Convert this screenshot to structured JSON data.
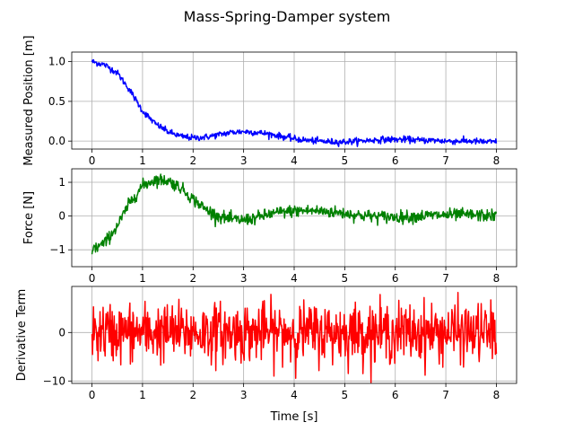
{
  "figure": {
    "title": "Mass-Spring-Damper system"
  },
  "chart_data": [
    {
      "type": "line",
      "ylabel": "Measured Position [m]",
      "xlabel": "",
      "xlim": [
        -0.4,
        8.4
      ],
      "ylim": [
        -0.1,
        1.12
      ],
      "xticks": [
        "0",
        "1",
        "2",
        "3",
        "4",
        "5",
        "6",
        "7",
        "8"
      ],
      "yticks": [
        "0.0",
        "0.5",
        "1.0"
      ],
      "grid": true,
      "series": [
        {
          "color": "#0000ff",
          "x": [
            0,
            0.25,
            0.5,
            0.75,
            1.0,
            1.25,
            1.5,
            1.75,
            2.0,
            2.25,
            2.5,
            2.75,
            3.0,
            3.25,
            3.5,
            3.75,
            4.0,
            4.25,
            4.5,
            4.75,
            5.0,
            5.25,
            5.5,
            5.75,
            6.0,
            6.25,
            6.5,
            6.75,
            7.0,
            7.25,
            7.5,
            7.75,
            8.0
          ],
          "y": [
            1.0,
            0.96,
            0.86,
            0.64,
            0.38,
            0.22,
            0.12,
            0.06,
            0.04,
            0.05,
            0.08,
            0.11,
            0.12,
            0.11,
            0.09,
            0.06,
            0.03,
            0.01,
            0.0,
            -0.01,
            -0.01,
            0.0,
            0.01,
            0.02,
            0.02,
            0.02,
            0.01,
            0.01,
            0.0,
            0.0,
            0.0,
            -0.01,
            -0.01
          ],
          "noise": 0.02
        }
      ]
    },
    {
      "type": "line",
      "ylabel": "Force [N]",
      "xlabel": "",
      "xlim": [
        -0.4,
        8.4
      ],
      "ylim": [
        -1.5,
        1.4
      ],
      "xticks": [
        "0",
        "1",
        "2",
        "3",
        "4",
        "5",
        "6",
        "7",
        "8"
      ],
      "yticks": [
        "−1",
        "0",
        "1"
      ],
      "grid": true,
      "series": [
        {
          "color": "#008000",
          "x": [
            0,
            0.25,
            0.5,
            0.75,
            1.0,
            1.25,
            1.5,
            1.75,
            2.0,
            2.25,
            2.5,
            2.75,
            3.0,
            3.25,
            3.5,
            3.75,
            4.0,
            4.25,
            4.5,
            4.75,
            5.0,
            5.25,
            5.5,
            5.75,
            6.0,
            6.25,
            6.5,
            6.75,
            7.0,
            7.25,
            7.5,
            7.75,
            8.0
          ],
          "y": [
            -1.0,
            -0.8,
            -0.3,
            0.4,
            0.9,
            1.08,
            1.05,
            0.85,
            0.5,
            0.2,
            0.0,
            -0.1,
            -0.12,
            -0.05,
            0.05,
            0.12,
            0.15,
            0.16,
            0.15,
            0.12,
            0.08,
            0.03,
            0.0,
            -0.02,
            -0.03,
            -0.02,
            0.0,
            0.02,
            0.03,
            0.04,
            0.03,
            0.02,
            0.0
          ],
          "noise": 0.09
        }
      ]
    },
    {
      "type": "line",
      "ylabel": "Derivative Term",
      "xlabel": "Time [s]",
      "xlim": [
        -0.4,
        8.4
      ],
      "ylim": [
        -10.5,
        9.5
      ],
      "xticks": [
        "0",
        "1",
        "2",
        "3",
        "4",
        "5",
        "6",
        "7",
        "8"
      ],
      "yticks": [
        "−10",
        "0"
      ],
      "grid": true,
      "series": [
        {
          "color": "#ff0000",
          "x": [
            0,
            8
          ],
          "y": [
            0,
            0
          ],
          "noise": 3.0
        }
      ]
    }
  ]
}
